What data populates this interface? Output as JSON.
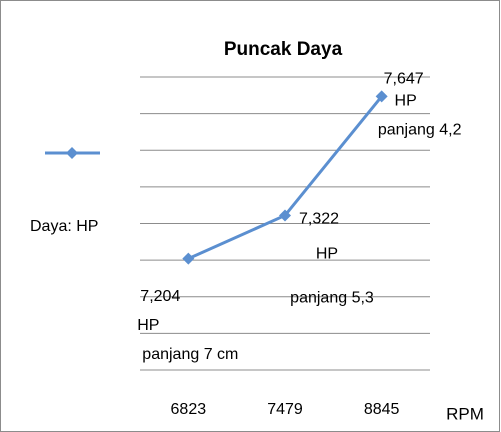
{
  "chart_data": {
    "type": "line",
    "title": "Puncak Daya",
    "categories": [
      "6823",
      "7479",
      "8845"
    ],
    "series": [
      {
        "name": "Daya: HP",
        "color": "#5b8fd0",
        "values": [
          7.204,
          7.322,
          7.647
        ],
        "value_labels": [
          [
            "7,204",
            "HP",
            "panjang 7 cm"
          ],
          [
            "7,322",
            "HP",
            "panjang 5,3"
          ],
          [
            "7,647",
            "HP",
            "panjang 4,2"
          ]
        ]
      }
    ],
    "xlabel": "RPM",
    "ylim": [
      6.9,
      7.7
    ],
    "yticks": [
      6.9,
      7.0,
      7.1,
      7.2,
      7.3,
      7.4,
      7.5,
      7.6,
      7.7
    ],
    "ytick_labels": false,
    "grid": true,
    "legend": "left"
  }
}
